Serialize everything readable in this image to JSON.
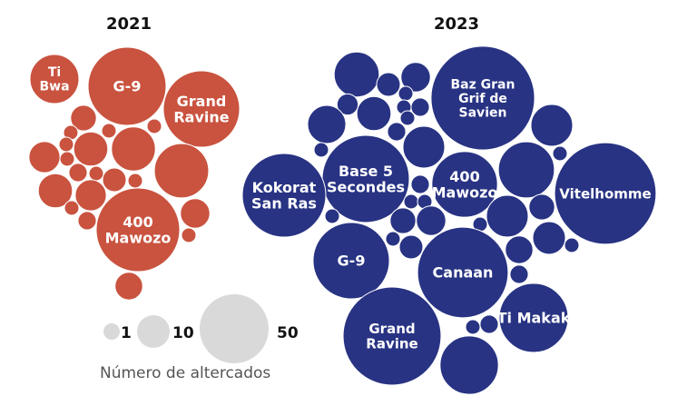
{
  "chart_data": {
    "type": "bubble-pack",
    "colors": {
      "2021": "#c9533f",
      "2023": "#283383",
      "legend": "#d9d9d9"
    },
    "panels": [
      {
        "title": "2021",
        "bubbles": [
          {
            "label": [
              "Ti",
              "Bwa"
            ],
            "value": 23
          },
          {
            "label": [
              "G-9"
            ],
            "value": 64
          },
          {
            "label": [
              "Grand",
              "Ravine"
            ],
            "value": 61
          },
          {
            "label": [],
            "value": 5
          },
          {
            "label": [],
            "value": 1
          },
          {
            "label": [],
            "value": 1
          },
          {
            "label": [],
            "value": 1
          },
          {
            "label": [],
            "value": 10
          },
          {
            "label": [],
            "value": 18
          },
          {
            "label": [],
            "value": 8
          },
          {
            "label": [],
            "value": 1
          },
          {
            "label": [],
            "value": 1
          },
          {
            "label": [],
            "value": 29
          },
          {
            "label": [],
            "value": 2
          },
          {
            "label": [],
            "value": 1
          },
          {
            "label": [],
            "value": 4
          },
          {
            "label": [],
            "value": 1
          },
          {
            "label": [],
            "value": 10
          },
          {
            "label": [],
            "value": 8
          },
          {
            "label": [],
            "value": 1
          },
          {
            "label": [],
            "value": 2
          },
          {
            "label": [
              "400",
              "Mawozo"
            ],
            "value": 74
          },
          {
            "label": [],
            "value": 7
          },
          {
            "label": [],
            "value": 1
          },
          {
            "label": [],
            "value": 6
          }
        ]
      },
      {
        "title": "2023",
        "bubbles": [
          {
            "label": [],
            "value": 19
          },
          {
            "label": [],
            "value": 4
          },
          {
            "label": [],
            "value": 7
          },
          {
            "label": [
              "Baz Gran",
              "Grif de",
              "Savien"
            ],
            "value": 117
          },
          {
            "label": [],
            "value": 3
          },
          {
            "label": [],
            "value": 10
          },
          {
            "label": [],
            "value": 1
          },
          {
            "label": [],
            "value": 1
          },
          {
            "label": [],
            "value": 2
          },
          {
            "label": [],
            "value": 1
          },
          {
            "label": [],
            "value": 13
          },
          {
            "label": [],
            "value": 2
          },
          {
            "label": [],
            "value": 16
          },
          {
            "label": [],
            "value": 16
          },
          {
            "label": [],
            "value": 1
          },
          {
            "label": [
              "Base 5",
              "Secondes"
            ],
            "value": 81
          },
          {
            "label": [
              "Kokorat",
              "San Ras"
            ],
            "value": 74
          },
          {
            "label": [],
            "value": 31
          },
          {
            "label": [],
            "value": 1
          },
          {
            "label": [
              "400",
              "Mawozo"
            ],
            "value": 44
          },
          {
            "label": [
              "Vitelhomme"
            ],
            "value": 112
          },
          {
            "label": [],
            "value": 2
          },
          {
            "label": [],
            "value": 1
          },
          {
            "label": [],
            "value": 1
          },
          {
            "label": [],
            "value": 5
          },
          {
            "label": [],
            "value": 7
          },
          {
            "label": [],
            "value": 1
          },
          {
            "label": [],
            "value": 16
          },
          {
            "label": [],
            "value": 5
          },
          {
            "label": [],
            "value": 1
          },
          {
            "label": [],
            "value": 9
          },
          {
            "label": [],
            "value": 1
          },
          {
            "label": [],
            "value": 6
          },
          {
            "label": [],
            "value": 1
          },
          {
            "label": [],
            "value": 4
          },
          {
            "label": [
              "G-9"
            ],
            "value": 61
          },
          {
            "label": [
              "Canaan"
            ],
            "value": 88
          },
          {
            "label": [],
            "value": 2
          },
          {
            "label": [
              "Ti Makak"
            ],
            "value": 49
          },
          {
            "label": [],
            "value": 2
          },
          {
            "label": [],
            "value": 1
          },
          {
            "label": [
              "Grand",
              "Ravine"
            ],
            "value": 104
          },
          {
            "label": [],
            "value": 34
          }
        ]
      }
    ],
    "legend": {
      "items": [
        {
          "label": "1",
          "value": 1
        },
        {
          "label": "10",
          "value": 10
        },
        {
          "label": "50",
          "value": 50
        }
      ],
      "caption": "Número de altercados"
    }
  }
}
